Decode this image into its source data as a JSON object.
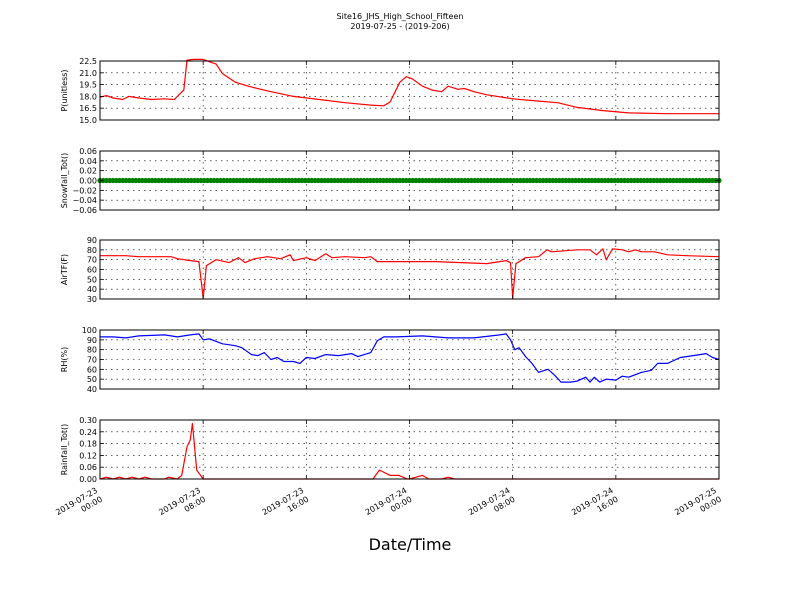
{
  "title": "Site16_JHS_High_School_Fifteen",
  "subtitle": "2019-07-25 - (2019-206)",
  "chart_data": {
    "type": "line",
    "xlabel": "Date/Time",
    "x_ticks": [
      {
        "line1": "2019-07-23",
        "line2": "00:00"
      },
      {
        "line1": "2019-07-23",
        "line2": "08:00"
      },
      {
        "line1": "2019-07-23",
        "line2": "16:00"
      },
      {
        "line1": "2019-07-24",
        "line2": "00:00"
      },
      {
        "line1": "2019-07-24",
        "line2": "08:00"
      },
      {
        "line1": "2019-07-24",
        "line2": "16:00"
      },
      {
        "line1": "2019-07-25",
        "line2": "00:00"
      }
    ],
    "xlim": [
      "2019-07-23 00:00",
      "2019-07-25 00:00"
    ],
    "grid": true,
    "panels": [
      {
        "ylabel": "P(unitless)",
        "ylim": [
          15.0,
          22.5
        ],
        "yticks": [
          "15.0",
          "16.5",
          "18.0",
          "19.5",
          "21.0",
          "22.5"
        ],
        "color": "#ff0000",
        "style": "line",
        "points": [
          [
            "2019-07-23 00:00",
            17.9
          ],
          [
            "2019-07-23 00:30",
            18.1
          ],
          [
            "2019-07-23 01:00",
            17.8
          ],
          [
            "2019-07-23 01:45",
            17.6
          ],
          [
            "2019-07-23 02:15",
            18.0
          ],
          [
            "2019-07-23 03:00",
            17.8
          ],
          [
            "2019-07-23 04:00",
            17.6
          ],
          [
            "2019-07-23 05:00",
            17.7
          ],
          [
            "2019-07-23 05:45",
            17.6
          ],
          [
            "2019-07-23 06:30",
            18.8
          ],
          [
            "2019-07-23 06:45",
            22.6
          ],
          [
            "2019-07-23 07:15",
            22.7
          ],
          [
            "2019-07-23 08:00",
            22.7
          ],
          [
            "2019-07-23 09:00",
            22.1
          ],
          [
            "2019-07-23 09:30",
            20.9
          ],
          [
            "2019-07-23 10:30",
            19.8
          ],
          [
            "2019-07-23 11:30",
            19.3
          ],
          [
            "2019-07-23 13:00",
            18.7
          ],
          [
            "2019-07-23 15:00",
            18.0
          ],
          [
            "2019-07-23 17:00",
            17.6
          ],
          [
            "2019-07-23 19:00",
            17.2
          ],
          [
            "2019-07-23 21:00",
            16.9
          ],
          [
            "2019-07-23 22:00",
            16.8
          ],
          [
            "2019-07-23 22:30",
            17.3
          ],
          [
            "2019-07-23 23:15",
            19.8
          ],
          [
            "2019-07-23 23:45",
            20.5
          ],
          [
            "2019-07-24 00:15",
            20.2
          ],
          [
            "2019-07-24 01:00",
            19.3
          ],
          [
            "2019-07-24 01:45",
            18.8
          ],
          [
            "2019-07-24 02:30",
            18.6
          ],
          [
            "2019-07-24 03:00",
            19.3
          ],
          [
            "2019-07-24 03:45",
            18.9
          ],
          [
            "2019-07-24 04:15",
            19.0
          ],
          [
            "2019-07-24 05:00",
            18.6
          ],
          [
            "2019-07-24 06:00",
            18.2
          ],
          [
            "2019-07-24 08:00",
            17.7
          ],
          [
            "2019-07-24 10:00",
            17.4
          ],
          [
            "2019-07-24 11:30",
            17.2
          ],
          [
            "2019-07-24 13:00",
            16.6
          ],
          [
            "2019-07-24 15:00",
            16.2
          ],
          [
            "2019-07-24 17:00",
            15.9
          ],
          [
            "2019-07-24 20:00",
            15.8
          ],
          [
            "2019-07-25 00:00",
            15.8
          ]
        ]
      },
      {
        "ylabel": "Snowfall_Tot()",
        "ylim": [
          -0.06,
          0.06
        ],
        "yticks": [
          "−0.06",
          "−0.04",
          "−0.02",
          "0.00",
          "0.02",
          "0.04",
          "0.06"
        ],
        "color": "#008000",
        "style": "markers",
        "points": [
          [
            "2019-07-23 00:00",
            0.0
          ],
          [
            "2019-07-25 00:00",
            0.0
          ]
        ]
      },
      {
        "ylabel": "AirTF(F)",
        "ylim": [
          30,
          90
        ],
        "yticks": [
          "30",
          "40",
          "50",
          "60",
          "70",
          "80",
          "90"
        ],
        "color": "#ff0000",
        "style": "line",
        "points": [
          [
            "2019-07-23 00:00",
            74
          ],
          [
            "2019-07-23 02:00",
            74
          ],
          [
            "2019-07-23 03:00",
            73
          ],
          [
            "2019-07-23 05:30",
            73
          ],
          [
            "2019-07-23 06:00",
            71
          ],
          [
            "2019-07-23 07:00",
            69
          ],
          [
            "2019-07-23 07:40",
            68
          ],
          [
            "2019-07-23 08:00",
            31
          ],
          [
            "2019-07-23 08:15",
            64
          ],
          [
            "2019-07-23 09:00",
            70
          ],
          [
            "2019-07-23 10:00",
            67
          ],
          [
            "2019-07-23 10:45",
            72
          ],
          [
            "2019-07-23 11:15",
            67
          ],
          [
            "2019-07-23 12:00",
            71
          ],
          [
            "2019-07-23 13:00",
            73
          ],
          [
            "2019-07-23 14:00",
            71
          ],
          [
            "2019-07-23 14:45",
            75
          ],
          [
            "2019-07-23 15:00",
            69
          ],
          [
            "2019-07-23 16:00",
            72
          ],
          [
            "2019-07-23 16:40",
            69
          ],
          [
            "2019-07-23 17:30",
            76
          ],
          [
            "2019-07-23 18:00",
            72
          ],
          [
            "2019-07-23 19:00",
            73
          ],
          [
            "2019-07-23 20:30",
            72
          ],
          [
            "2019-07-23 21:00",
            73
          ],
          [
            "2019-07-23 21:30",
            68
          ],
          [
            "2019-07-24 00:00",
            68
          ],
          [
            "2019-07-24 02:00",
            68
          ],
          [
            "2019-07-24 04:00",
            67
          ],
          [
            "2019-07-24 06:00",
            66
          ],
          [
            "2019-07-24 07:30",
            69
          ],
          [
            "2019-07-24 07:50",
            67
          ],
          [
            "2019-07-24 08:00",
            31
          ],
          [
            "2019-07-24 08:15",
            66
          ],
          [
            "2019-07-24 09:00",
            72
          ],
          [
            "2019-07-24 10:00",
            73
          ],
          [
            "2019-07-24 10:40",
            80
          ],
          [
            "2019-07-24 11:00",
            78
          ],
          [
            "2019-07-24 12:00",
            79
          ],
          [
            "2019-07-24 13:00",
            80
          ],
          [
            "2019-07-24 14:00",
            80
          ],
          [
            "2019-07-24 14:30",
            75
          ],
          [
            "2019-07-24 15:00",
            81
          ],
          [
            "2019-07-24 15:15",
            70
          ],
          [
            "2019-07-24 15:45",
            81
          ],
          [
            "2019-07-24 16:30",
            80
          ],
          [
            "2019-07-24 17:00",
            78
          ],
          [
            "2019-07-24 17:30",
            80
          ],
          [
            "2019-07-24 18:00",
            78
          ],
          [
            "2019-07-24 19:00",
            78
          ],
          [
            "2019-07-24 20:00",
            75
          ],
          [
            "2019-07-24 21:30",
            74
          ],
          [
            "2019-07-25 00:00",
            73
          ]
        ]
      },
      {
        "ylabel": "RH(%)",
        "ylim": [
          40,
          100
        ],
        "yticks": [
          "40",
          "50",
          "60",
          "70",
          "80",
          "90",
          "100"
        ],
        "color": "#0000ff",
        "style": "line",
        "points": [
          [
            "2019-07-23 00:00",
            93
          ],
          [
            "2019-07-23 01:00",
            93
          ],
          [
            "2019-07-23 02:00",
            92
          ],
          [
            "2019-07-23 03:00",
            94
          ],
          [
            "2019-07-23 05:00",
            95
          ],
          [
            "2019-07-23 06:00",
            93
          ],
          [
            "2019-07-23 07:00",
            95
          ],
          [
            "2019-07-23 07:40",
            96
          ],
          [
            "2019-07-23 08:00",
            90
          ],
          [
            "2019-07-23 08:30",
            91
          ],
          [
            "2019-07-23 09:30",
            86
          ],
          [
            "2019-07-23 10:30",
            84
          ],
          [
            "2019-07-23 11:00",
            82
          ],
          [
            "2019-07-23 11:45",
            75
          ],
          [
            "2019-07-23 12:15",
            74
          ],
          [
            "2019-07-23 12:45",
            77
          ],
          [
            "2019-07-23 13:15",
            70
          ],
          [
            "2019-07-23 13:45",
            72
          ],
          [
            "2019-07-23 14:15",
            68
          ],
          [
            "2019-07-23 15:00",
            68
          ],
          [
            "2019-07-23 15:30",
            66
          ],
          [
            "2019-07-23 16:00",
            72
          ],
          [
            "2019-07-23 16:40",
            71
          ],
          [
            "2019-07-23 17:30",
            75
          ],
          [
            "2019-07-23 18:30",
            74
          ],
          [
            "2019-07-23 19:30",
            76
          ],
          [
            "2019-07-23 20:00",
            73
          ],
          [
            "2019-07-23 21:00",
            77
          ],
          [
            "2019-07-23 21:30",
            89
          ],
          [
            "2019-07-23 22:00",
            93
          ],
          [
            "2019-07-23 23:00",
            93
          ],
          [
            "2019-07-24 01:00",
            94
          ],
          [
            "2019-07-24 03:00",
            92
          ],
          [
            "2019-07-24 05:00",
            92
          ],
          [
            "2019-07-24 07:00",
            95
          ],
          [
            "2019-07-24 07:30",
            96
          ],
          [
            "2019-07-24 07:50",
            90
          ],
          [
            "2019-07-24 08:10",
            80
          ],
          [
            "2019-07-24 08:30",
            82
          ],
          [
            "2019-07-24 09:00",
            73
          ],
          [
            "2019-07-24 09:30",
            66
          ],
          [
            "2019-07-24 10:00",
            57
          ],
          [
            "2019-07-24 10:45",
            60
          ],
          [
            "2019-07-24 11:15",
            54
          ],
          [
            "2019-07-24 11:45",
            47
          ],
          [
            "2019-07-24 12:30",
            47
          ],
          [
            "2019-07-24 13:00",
            48
          ],
          [
            "2019-07-24 13:40",
            52
          ],
          [
            "2019-07-24 14:00",
            47
          ],
          [
            "2019-07-24 14:20",
            52
          ],
          [
            "2019-07-24 14:45",
            47
          ],
          [
            "2019-07-24 15:15",
            50
          ],
          [
            "2019-07-24 16:00",
            49
          ],
          [
            "2019-07-24 16:30",
            53
          ],
          [
            "2019-07-24 17:00",
            52
          ],
          [
            "2019-07-24 18:00",
            57
          ],
          [
            "2019-07-24 18:45",
            59
          ],
          [
            "2019-07-24 19:15",
            66
          ],
          [
            "2019-07-24 20:00",
            66
          ],
          [
            "2019-07-24 21:00",
            72
          ],
          [
            "2019-07-24 22:00",
            74
          ],
          [
            "2019-07-24 23:00",
            76
          ],
          [
            "2019-07-24 23:30",
            72
          ],
          [
            "2019-07-25 00:00",
            70
          ]
        ]
      },
      {
        "ylabel": "Rainfall_Tot()",
        "ylim": [
          0.0,
          0.33
        ],
        "yticks": [
          "0.00",
          "0.06",
          "0.12",
          "0.18",
          "0.24",
          "0.30"
        ],
        "color": "#ff0000",
        "style": "line",
        "points": [
          [
            "2019-07-23 00:00",
            0.0
          ],
          [
            "2019-07-23 00:30",
            0.01
          ],
          [
            "2019-07-23 01:00",
            0.0
          ],
          [
            "2019-07-23 01:30",
            0.01
          ],
          [
            "2019-07-23 02:00",
            0.0
          ],
          [
            "2019-07-23 02:30",
            0.01
          ],
          [
            "2019-07-23 03:00",
            0.0
          ],
          [
            "2019-07-23 03:30",
            0.01
          ],
          [
            "2019-07-23 04:00",
            0.0
          ],
          [
            "2019-07-23 05:00",
            0.0
          ],
          [
            "2019-07-23 05:20",
            0.01
          ],
          [
            "2019-07-23 06:00",
            0.0
          ],
          [
            "2019-07-23 06:20",
            0.02
          ],
          [
            "2019-07-23 06:45",
            0.18
          ],
          [
            "2019-07-23 07:00",
            0.22
          ],
          [
            "2019-07-23 07:10",
            0.31
          ],
          [
            "2019-07-23 07:20",
            0.18
          ],
          [
            "2019-07-23 07:30",
            0.05
          ],
          [
            "2019-07-23 08:00",
            0.0
          ],
          [
            "2019-07-23 20:30",
            0.0
          ],
          [
            "2019-07-23 21:10",
            0.0
          ],
          [
            "2019-07-23 21:40",
            0.05
          ],
          [
            "2019-07-23 22:30",
            0.02
          ],
          [
            "2019-07-23 23:10",
            0.02
          ],
          [
            "2019-07-23 23:50",
            0.0
          ],
          [
            "2019-07-24 00:00",
            0.0
          ],
          [
            "2019-07-24 00:30",
            0.01
          ],
          [
            "2019-07-24 01:00",
            0.02
          ],
          [
            "2019-07-24 01:30",
            0.0
          ],
          [
            "2019-07-24 02:30",
            0.0
          ],
          [
            "2019-07-24 03:00",
            0.01
          ],
          [
            "2019-07-24 03:30",
            0.0
          ],
          [
            "2019-07-25 00:00",
            0.0
          ]
        ]
      }
    ]
  }
}
